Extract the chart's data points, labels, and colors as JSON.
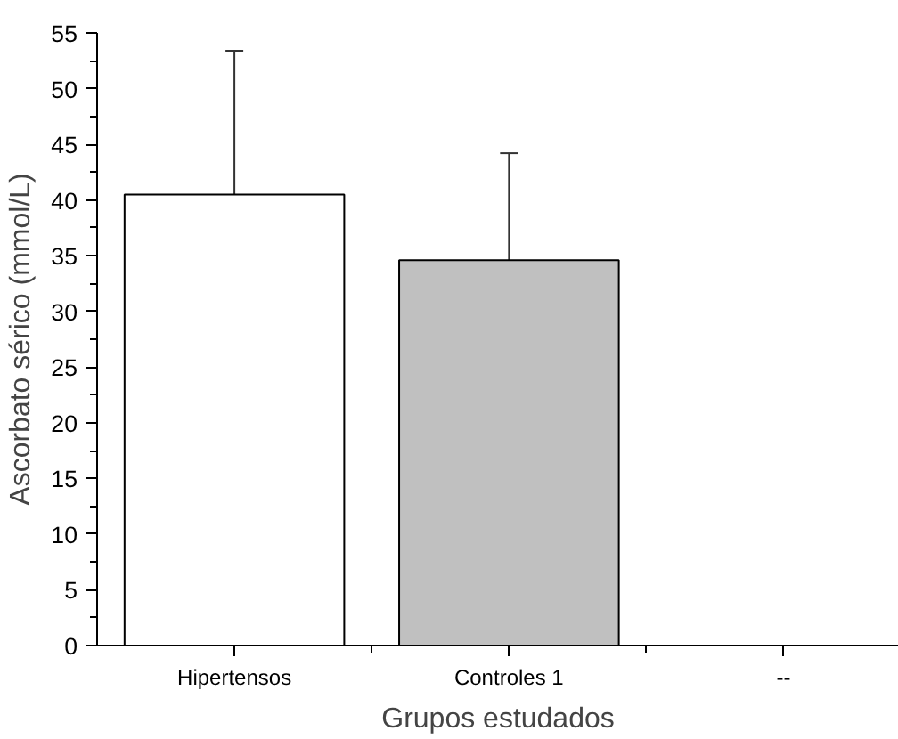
{
  "chart_data": {
    "type": "bar",
    "xlabel": "Grupos estudados",
    "ylabel": "Ascorbato sérico (mmol/L)",
    "categories": [
      "Hipertensos",
      "Controles 1",
      "--"
    ],
    "values": [
      40.5,
      34.6,
      null
    ],
    "colors": [
      "#ffffff",
      "#c0c0c0",
      "#ffffff"
    ],
    "errors": [
      [
        40.5,
        53.4
      ],
      [
        34.6,
        44.2
      ],
      null
    ],
    "ylim": [
      0,
      55
    ],
    "yticks": [
      0,
      5,
      10,
      15,
      20,
      25,
      30,
      35,
      40,
      45,
      50,
      55
    ],
    "grid": false
  }
}
